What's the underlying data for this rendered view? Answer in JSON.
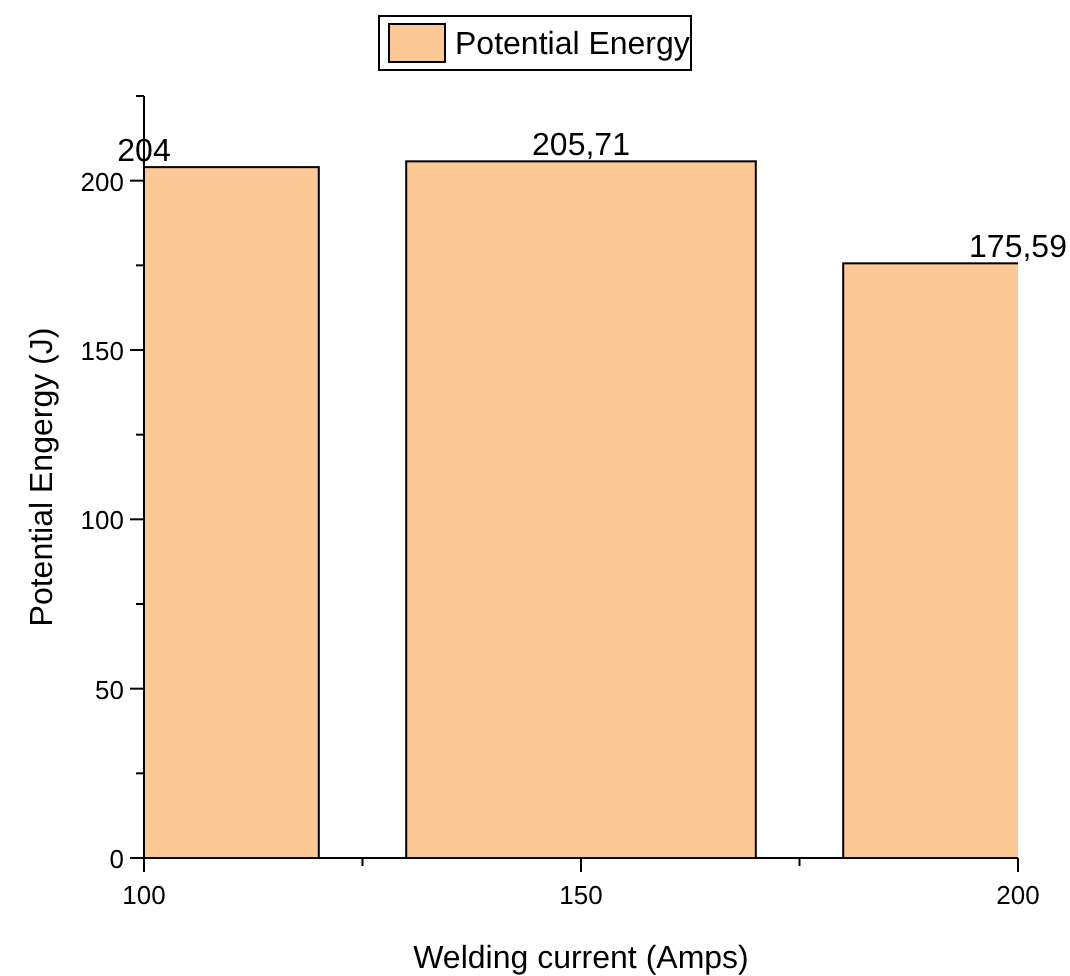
{
  "chart_data": {
    "type": "bar",
    "xlabel": "Welding current (Amps)",
    "ylabel": "Potential Engergy (J)",
    "x": [
      100,
      150,
      200
    ],
    "series": [
      {
        "name": "Potential Energy",
        "color": "#fbc896",
        "values": [
          204,
          205.71,
          175.59
        ],
        "value_labels": [
          "204",
          "205,71",
          "175,59"
        ]
      }
    ],
    "xlim": [
      100,
      200
    ],
    "xticks": [
      100,
      {
        "value": 125,
        "label": null
      },
      150,
      {
        "value": 175,
        "label": null
      },
      200
    ],
    "ylim": [
      0,
      225
    ],
    "yticks": [
      0,
      {
        "value": 25,
        "label": null
      },
      50,
      {
        "value": 75,
        "label": null
      },
      100,
      {
        "value": 125,
        "label": null
      },
      150,
      {
        "value": 175,
        "label": null
      },
      200,
      {
        "value": 225,
        "label": null
      }
    ],
    "grid": false,
    "legend": "top"
  }
}
